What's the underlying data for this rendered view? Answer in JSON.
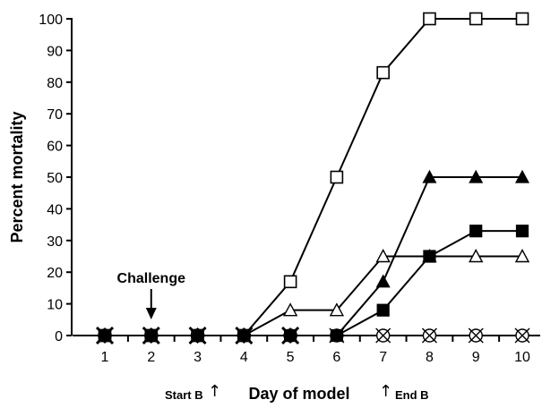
{
  "chart_data": {
    "type": "line",
    "title": "",
    "xlabel": "Day of model",
    "ylabel": "Percent mortality",
    "x": [
      1,
      2,
      3,
      4,
      5,
      6,
      7,
      8,
      9,
      10
    ],
    "x_ticks": [
      "1",
      "2",
      "3",
      "4",
      "5",
      "6",
      "7",
      "8",
      "9",
      "10"
    ],
    "y_ticks": [
      "0",
      "10",
      "20",
      "30",
      "40",
      "50",
      "60",
      "70",
      "80",
      "90",
      "100"
    ],
    "ylim": [
      0,
      100
    ],
    "xlim": [
      0.5,
      10.5
    ],
    "grid": false,
    "series": [
      {
        "marker": "open-square",
        "values": [
          0,
          0,
          0,
          0,
          17,
          50,
          83,
          100,
          100,
          100
        ]
      },
      {
        "marker": "filled-triangle",
        "values": [
          0,
          0,
          0,
          0,
          0,
          0,
          17,
          50,
          50,
          50
        ]
      },
      {
        "marker": "filled-square",
        "values": [
          0,
          0,
          0,
          0,
          0,
          0,
          8,
          25,
          33,
          33
        ]
      },
      {
        "marker": "open-triangle",
        "values": [
          0,
          0,
          0,
          0,
          8,
          8,
          25,
          25,
          25,
          25
        ]
      },
      {
        "marker": "circle-x",
        "values": [
          0,
          0,
          0,
          0,
          0,
          0,
          0,
          0,
          0,
          0
        ]
      }
    ],
    "annotations": {
      "challenge": {
        "label": "Challenge",
        "day": 2
      },
      "start_b": {
        "label": "Start B",
        "day": 3.5
      },
      "end_b": {
        "label": "End B",
        "day": 7
      }
    },
    "colors": {
      "line": "#000000",
      "fill": "#000000",
      "background": "#ffffff"
    }
  }
}
